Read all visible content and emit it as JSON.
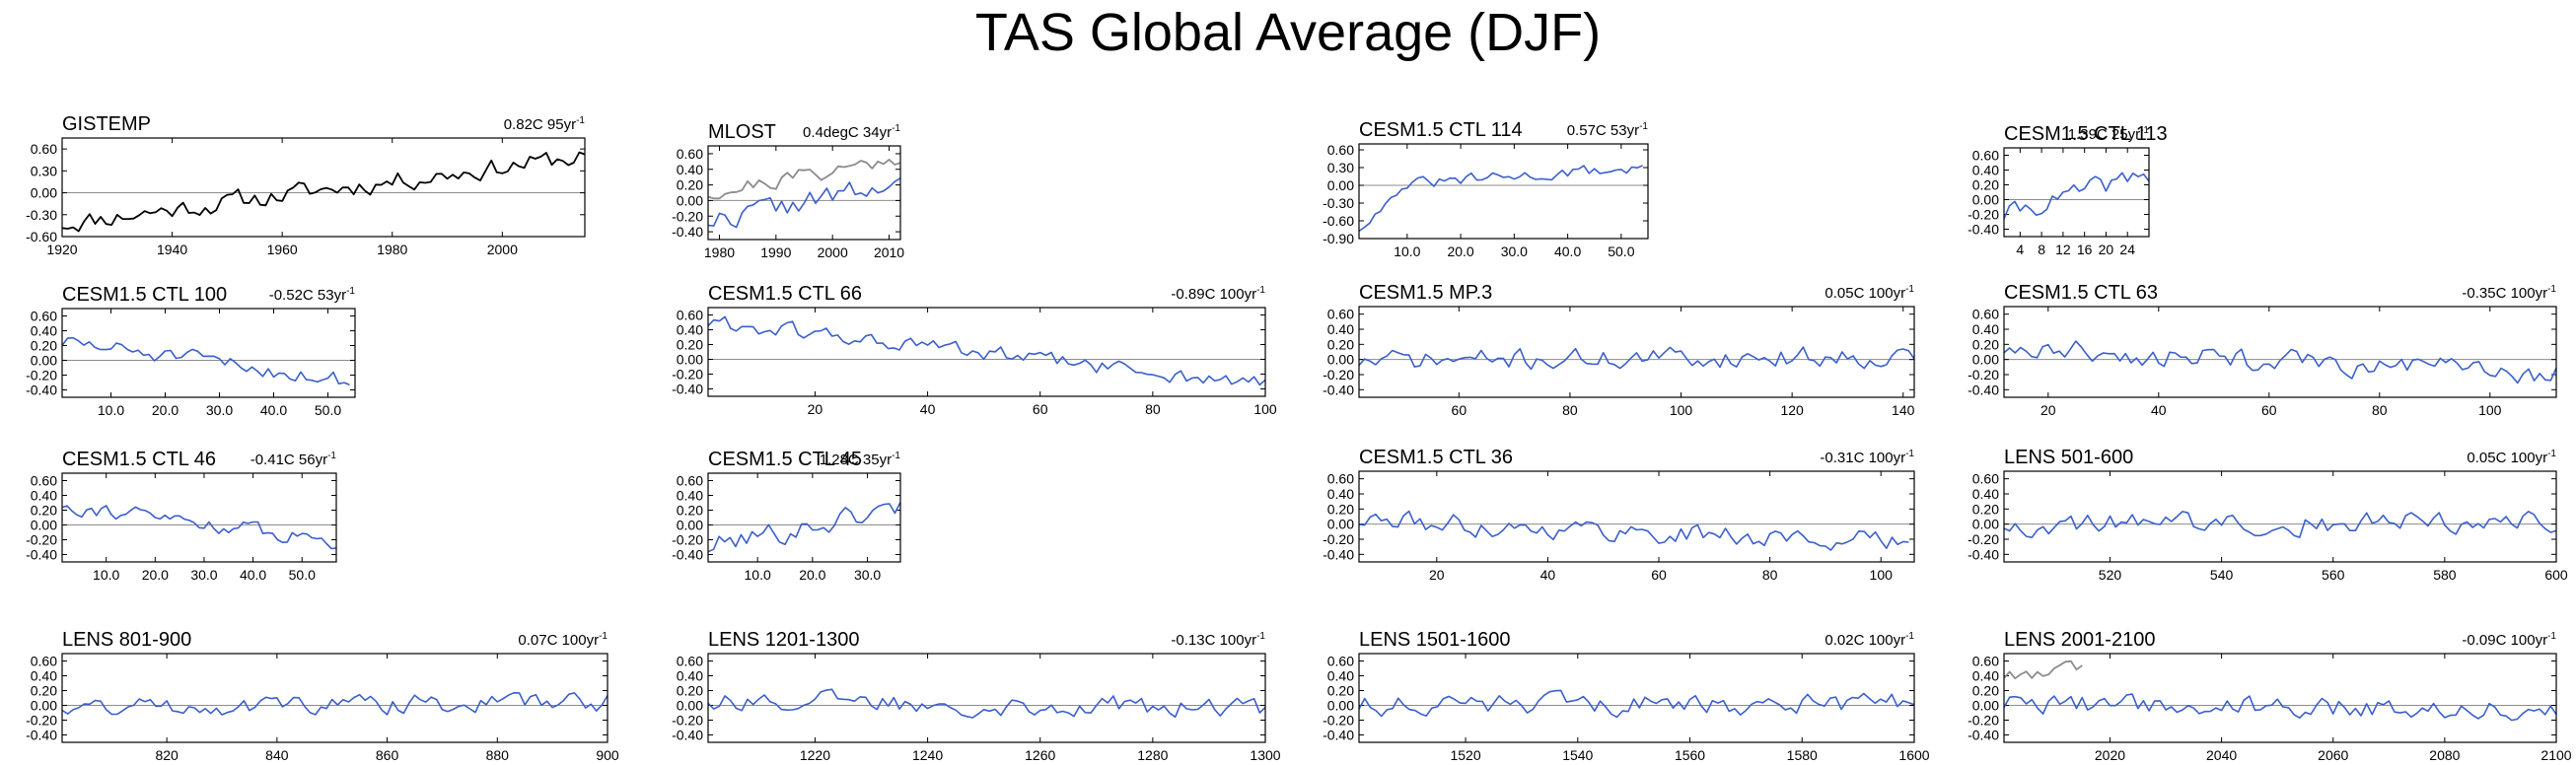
{
  "title": "TAS Global Average (DJF)",
  "colors": {
    "model": "#3a5fcd",
    "obs": "#000000",
    "obs_gray": "#8c8c8c",
    "zero_line": "#8c8c8c"
  },
  "chart_data": [
    {
      "type": "line",
      "title": "GISTEMP",
      "trend": "0.82C 95yr",
      "xlim": [
        1920,
        2015
      ],
      "ylim": [
        -0.6,
        0.75
      ],
      "yticks": [
        "0.60",
        "0.30",
        "0.00",
        "-0.30",
        "-0.60"
      ],
      "ytick_values": [
        0.6,
        0.3,
        0,
        -0.3,
        -0.6
      ],
      "xticks": [
        "1920",
        "1940",
        "1960",
        "1980",
        "2000"
      ],
      "xtick_values": [
        1920,
        1940,
        1960,
        1980,
        2000
      ],
      "series": [
        {
          "name": "GISTEMP",
          "color": "obs",
          "x_start": 1920,
          "x_step": 1,
          "trend_from": -0.42,
          "trend_to": 0.5,
          "noise": 0.12,
          "n": 96,
          "seed": 11
        }
      ]
    },
    {
      "type": "line",
      "title": "MLOST",
      "trend": "0.4degC 34yr",
      "xlim": [
        1978,
        2012
      ],
      "ylim": [
        -0.5,
        0.7
      ],
      "yticks": [
        "0.60",
        "0.40",
        "0.20",
        "0.00",
        "-0.20",
        "-0.40"
      ],
      "ytick_values": [
        0.6,
        0.4,
        0.2,
        0,
        -0.2,
        -0.4
      ],
      "xticks": [
        "1980",
        "1990",
        "2000",
        "2010"
      ],
      "xtick_values": [
        1980,
        1990,
        2000,
        2010
      ],
      "series": [
        {
          "name": "MLOST",
          "color": "obs_gray",
          "x_start": 1978,
          "x_step": 1,
          "trend_from": 0.1,
          "trend_to": 0.55,
          "noise": 0.1,
          "n": 35,
          "seed": 21
        },
        {
          "name": "model",
          "color": "model",
          "x_start": 1978,
          "x_step": 1,
          "trend_from": -0.25,
          "trend_to": 0.2,
          "noise": 0.13,
          "n": 35,
          "seed": 22
        }
      ]
    },
    {
      "type": "line",
      "title": "CESM1.5 CTL 114",
      "trend": "0.57C 53yr",
      "xlim": [
        1,
        55
      ],
      "ylim": [
        -0.9,
        0.7
      ],
      "yticks": [
        "0.60",
        "0.30",
        "0.00",
        "-0.30",
        "-0.60",
        "-0.90"
      ],
      "ytick_values": [
        0.6,
        0.3,
        0,
        -0.3,
        -0.6,
        -0.9
      ],
      "xticks": [
        "10.0",
        "20.0",
        "30.0",
        "40.0",
        "50.0"
      ],
      "xtick_values": [
        10,
        20,
        30,
        40,
        50
      ],
      "series": [
        {
          "name": "model",
          "color": "model",
          "x_start": 1,
          "x_step": 1,
          "trend_from": -0.05,
          "trend_to": 0.3,
          "noise": 0.09,
          "n": 54,
          "seed": 31,
          "spin": -0.75
        }
      ]
    },
    {
      "type": "line",
      "title": "CESM1.5 CTL 113",
      "trend": "1.39C 25yr",
      "xlim": [
        1,
        28
      ],
      "ylim": [
        -0.5,
        0.7
      ],
      "yticks": [
        "0.60",
        "0.40",
        "0.20",
        "0.00",
        "-0.20",
        "-0.40"
      ],
      "ytick_values": [
        0.6,
        0.4,
        0.2,
        0,
        -0.2,
        -0.4
      ],
      "xticks": [
        "4",
        "8",
        "12",
        "16",
        "20",
        "24"
      ],
      "xtick_values": [
        4,
        8,
        12,
        16,
        20,
        24
      ],
      "series": [
        {
          "name": "model",
          "color": "model",
          "x_start": 1,
          "x_step": 1,
          "trend_from": -0.2,
          "trend_to": 0.35,
          "noise": 0.12,
          "n": 28,
          "seed": 41
        }
      ]
    },
    {
      "type": "line",
      "title": "CESM1.5 CTL 100",
      "trend": "-0.52C 53yr",
      "xlim": [
        1,
        55
      ],
      "ylim": [
        -0.5,
        0.7
      ],
      "yticks": [
        "0.60",
        "0.40",
        "0.20",
        "0.00",
        "-0.20",
        "-0.40"
      ],
      "ytick_values": [
        0.6,
        0.4,
        0.2,
        0,
        -0.2,
        -0.4
      ],
      "xticks": [
        "10.0",
        "20.0",
        "30.0",
        "40.0",
        "50.0"
      ],
      "xtick_values": [
        10,
        20,
        30,
        40,
        50
      ],
      "series": [
        {
          "name": "model",
          "color": "model",
          "x_start": 1,
          "x_step": 1,
          "trend_from": 0.25,
          "trend_to": -0.28,
          "noise": 0.1,
          "n": 54,
          "seed": 51
        }
      ]
    },
    {
      "type": "line",
      "title": "CESM1.5 CTL 66",
      "trend": "-0.89C 100yr",
      "xlim": [
        1,
        100
      ],
      "ylim": [
        -0.5,
        0.7
      ],
      "yticks": [
        "0.60",
        "0.40",
        "0.20",
        "0.00",
        "-0.20",
        "-0.40"
      ],
      "ytick_values": [
        0.6,
        0.4,
        0.2,
        0,
        -0.2,
        -0.4
      ],
      "xticks": [
        "20",
        "40",
        "60",
        "80",
        "100"
      ],
      "xtick_values": [
        20,
        40,
        60,
        80,
        100
      ],
      "series": [
        {
          "name": "model",
          "color": "model",
          "x_start": 1,
          "x_step": 1,
          "trend_from": 0.5,
          "trend_to": -0.35,
          "noise": 0.1,
          "n": 100,
          "seed": 61
        }
      ]
    },
    {
      "type": "line",
      "title": "CESM1.5 MP.3",
      "trend": "0.05C 100yr",
      "xlim": [
        42,
        142
      ],
      "ylim": [
        -0.5,
        0.7
      ],
      "yticks": [
        "0.60",
        "0.40",
        "0.20",
        "0.00",
        "-0.20",
        "-0.40"
      ],
      "ytick_values": [
        0.6,
        0.4,
        0.2,
        0,
        -0.2,
        -0.4
      ],
      "xticks": [
        "60",
        "80",
        "100",
        "120",
        "140"
      ],
      "xtick_values": [
        60,
        80,
        100,
        120,
        140
      ],
      "series": [
        {
          "name": "model",
          "color": "model",
          "x_start": 42,
          "x_step": 1,
          "trend_from": -0.02,
          "trend_to": 0.05,
          "noise": 0.12,
          "n": 101,
          "seed": 71
        }
      ]
    },
    {
      "type": "line",
      "title": "CESM1.5 CTL 63",
      "trend": "-0.35C 100yr",
      "xlim": [
        12,
        112
      ],
      "ylim": [
        -0.5,
        0.7
      ],
      "yticks": [
        "0.60",
        "0.40",
        "0.20",
        "0.00",
        "-0.20",
        "-0.40"
      ],
      "ytick_values": [
        0.6,
        0.4,
        0.2,
        0,
        -0.2,
        -0.4
      ],
      "xticks": [
        "20",
        "40",
        "60",
        "80",
        "100"
      ],
      "xtick_values": [
        20,
        40,
        60,
        80,
        100
      ],
      "series": [
        {
          "name": "model",
          "color": "model",
          "x_start": 12,
          "x_step": 1,
          "trend_from": 0.15,
          "trend_to": -0.2,
          "noise": 0.13,
          "n": 101,
          "seed": 81
        }
      ]
    },
    {
      "type": "line",
      "title": "CESM1.5 CTL 46",
      "trend": "-0.41C 56yr",
      "xlim": [
        1,
        57
      ],
      "ylim": [
        -0.5,
        0.7
      ],
      "yticks": [
        "0.60",
        "0.40",
        "0.20",
        "0.00",
        "-0.20",
        "-0.40"
      ],
      "ytick_values": [
        0.6,
        0.4,
        0.2,
        0,
        -0.2,
        -0.4
      ],
      "xticks": [
        "10.0",
        "20.0",
        "30.0",
        "40.0",
        "50.0"
      ],
      "xtick_values": [
        10,
        20,
        30,
        40,
        50
      ],
      "series": [
        {
          "name": "model",
          "color": "model",
          "x_start": 1,
          "x_step": 1,
          "trend_from": 0.28,
          "trend_to": -0.22,
          "noise": 0.09,
          "n": 57,
          "seed": 91
        }
      ]
    },
    {
      "type": "line",
      "title": "CESM1.5 CTL 45",
      "trend": "1.28C 35yr",
      "xlim": [
        1,
        36
      ],
      "ylim": [
        -0.5,
        0.7
      ],
      "yticks": [
        "0.60",
        "0.40",
        "0.20",
        "0.00",
        "-0.20",
        "-0.40"
      ],
      "ytick_values": [
        0.6,
        0.4,
        0.2,
        0,
        -0.2,
        -0.4
      ],
      "xticks": [
        "10.0",
        "20.0",
        "30.0"
      ],
      "xtick_values": [
        10,
        20,
        30
      ],
      "series": [
        {
          "name": "model",
          "color": "model",
          "x_start": 1,
          "x_step": 1,
          "trend_from": -0.3,
          "trend_to": 0.25,
          "noise": 0.14,
          "n": 36,
          "seed": 101
        }
      ]
    },
    {
      "type": "line",
      "title": "CESM1.5 CTL 36",
      "trend": "-0.31C 100yr",
      "xlim": [
        6,
        106
      ],
      "ylim": [
        -0.5,
        0.7
      ],
      "yticks": [
        "0.60",
        "0.40",
        "0.20",
        "0.00",
        "-0.20",
        "-0.40"
      ],
      "ytick_values": [
        0.6,
        0.4,
        0.2,
        0,
        -0.2,
        -0.4
      ],
      "xticks": [
        "20",
        "40",
        "60",
        "80",
        "100"
      ],
      "xtick_values": [
        20,
        40,
        60,
        80,
        100
      ],
      "series": [
        {
          "name": "model",
          "color": "model",
          "x_start": 6,
          "x_step": 1,
          "trend_from": 0.05,
          "trend_to": -0.25,
          "noise": 0.12,
          "n": 100,
          "seed": 111
        }
      ]
    },
    {
      "type": "line",
      "title": "LENS 501-600",
      "trend": "0.05C 100yr",
      "xlim": [
        501,
        600
      ],
      "ylim": [
        -0.5,
        0.7
      ],
      "yticks": [
        "0.60",
        "0.40",
        "0.20",
        "0.00",
        "-0.20",
        "-0.40"
      ],
      "ytick_values": [
        0.6,
        0.4,
        0.2,
        0,
        -0.2,
        -0.4
      ],
      "xticks": [
        "520",
        "540",
        "560",
        "580",
        "600"
      ],
      "xtick_values": [
        520,
        540,
        560,
        580,
        600
      ],
      "series": [
        {
          "name": "model",
          "color": "model",
          "x_start": 501,
          "x_step": 1,
          "trend_from": 0.0,
          "trend_to": 0.05,
          "noise": 0.13,
          "n": 100,
          "seed": 121
        }
      ]
    },
    {
      "type": "line",
      "title": "LENS 801-900",
      "trend": "0.07C 100yr",
      "xlim": [
        801,
        900
      ],
      "ylim": [
        -0.5,
        0.7
      ],
      "yticks": [
        "0.60",
        "0.40",
        "0.20",
        "0.00",
        "-0.20",
        "-0.40"
      ],
      "ytick_values": [
        0.6,
        0.4,
        0.2,
        0,
        -0.2,
        -0.4
      ],
      "xticks": [
        "820",
        "840",
        "860",
        "880",
        "900"
      ],
      "xtick_values": [
        820,
        840,
        860,
        880,
        900
      ],
      "series": [
        {
          "name": "model",
          "color": "model",
          "x_start": 801,
          "x_step": 1,
          "trend_from": -0.02,
          "trend_to": 0.05,
          "noise": 0.11,
          "n": 100,
          "seed": 131
        }
      ]
    },
    {
      "type": "line",
      "title": "LENS 1201-1300",
      "trend": "-0.13C 100yr",
      "xlim": [
        1201,
        1300
      ],
      "ylim": [
        -0.5,
        0.7
      ],
      "yticks": [
        "0.60",
        "0.40",
        "0.20",
        "0.00",
        "-0.20",
        "-0.40"
      ],
      "ytick_values": [
        0.6,
        0.4,
        0.2,
        0,
        -0.2,
        -0.4
      ],
      "xticks": [
        "1220",
        "1240",
        "1260",
        "1280",
        "1300"
      ],
      "xtick_values": [
        1220,
        1240,
        1260,
        1280,
        1300
      ],
      "series": [
        {
          "name": "model",
          "color": "model",
          "x_start": 1201,
          "x_step": 1,
          "trend_from": 0.08,
          "trend_to": -0.05,
          "noise": 0.12,
          "n": 100,
          "seed": 141
        }
      ]
    },
    {
      "type": "line",
      "title": "LENS 1501-1600",
      "trend": "0.02C 100yr",
      "xlim": [
        1501,
        1600
      ],
      "ylim": [
        -0.5,
        0.7
      ],
      "yticks": [
        "0.60",
        "0.40",
        "0.20",
        "0.00",
        "-0.20",
        "-0.40"
      ],
      "ytick_values": [
        0.6,
        0.4,
        0.2,
        0,
        -0.2,
        -0.4
      ],
      "xticks": [
        "1520",
        "1540",
        "1560",
        "1580",
        "1600"
      ],
      "xtick_values": [
        1520,
        1540,
        1560,
        1580,
        1600
      ],
      "series": [
        {
          "name": "model",
          "color": "model",
          "x_start": 1501,
          "x_step": 1,
          "trend_from": 0.0,
          "trend_to": 0.02,
          "noise": 0.12,
          "n": 100,
          "seed": 151
        }
      ]
    },
    {
      "type": "line",
      "title": "LENS 2001-2100",
      "trend": "-0.09C 100yr",
      "xlim": [
        2001,
        2100
      ],
      "ylim": [
        -0.5,
        0.7
      ],
      "yticks": [
        "0.60",
        "0.40",
        "0.20",
        "0.00",
        "-0.20",
        "-0.40"
      ],
      "ytick_values": [
        0.6,
        0.4,
        0.2,
        0,
        -0.2,
        -0.4
      ],
      "xticks": [
        "2020",
        "2040",
        "2060",
        "2080",
        "2100"
      ],
      "xtick_values": [
        2020,
        2040,
        2060,
        2080,
        2100
      ],
      "series": [
        {
          "name": "obs",
          "color": "obs_gray",
          "x_start": 2001,
          "x_step": 1,
          "trend_from": 0.4,
          "trend_to": 0.5,
          "noise": 0.08,
          "n": 15,
          "seed": 161
        },
        {
          "name": "model",
          "color": "model",
          "x_start": 2001,
          "x_step": 1,
          "trend_from": 0.02,
          "trend_to": -0.05,
          "noise": 0.12,
          "n": 100,
          "seed": 162
        }
      ]
    }
  ]
}
